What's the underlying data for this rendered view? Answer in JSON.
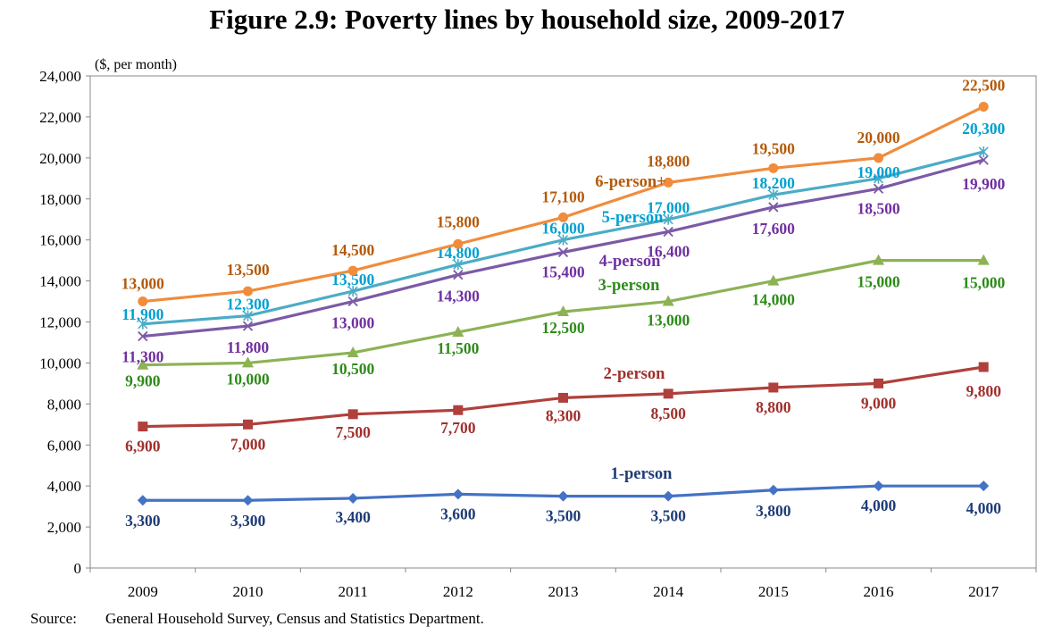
{
  "title": "Figure 2.9: Poverty lines by household size, 2009-2017",
  "source_label": "Source:",
  "source_text": "General Household Survey, Census and Statistics Department.",
  "chart_data": {
    "type": "line",
    "title": "Figure 2.9: Poverty lines by household size, 2009-2017",
    "ylabel": "($, per month)",
    "xlabel": "",
    "categories": [
      "2009",
      "2010",
      "2011",
      "2012",
      "2013",
      "2014",
      "2015",
      "2016",
      "2017"
    ],
    "ylim": [
      0,
      24000
    ],
    "yticks": [
      0,
      2000,
      4000,
      6000,
      8000,
      10000,
      12000,
      14000,
      16000,
      18000,
      20000,
      22000,
      24000
    ],
    "ytick_labels": [
      "0",
      "2,000",
      "4,000",
      "6,000",
      "8,000",
      "10,000",
      "12,000",
      "14,000",
      "16,000",
      "18,000",
      "20,000",
      "22,000",
      "24,000"
    ],
    "grid": false,
    "series": [
      {
        "name": "1-person",
        "color": "#4472C4",
        "label_color": "#1F3C78",
        "marker": "diamond",
        "values": [
          3300,
          3300,
          3400,
          3600,
          3500,
          3500,
          3800,
          4000,
          4000
        ],
        "labels": [
          "3,300",
          "3,300",
          "3,400",
          "3,600",
          "3,500",
          "3,500",
          "3,800",
          "4,000",
          "4,000"
        ]
      },
      {
        "name": "2-person",
        "color": "#B0403C",
        "label_color": "#A0302C",
        "marker": "square",
        "values": [
          6900,
          7000,
          7500,
          7700,
          8300,
          8500,
          8800,
          9000,
          9800
        ],
        "labels": [
          "6,900",
          "7,000",
          "7,500",
          "7,700",
          "8,300",
          "8,500",
          "8,800",
          "9,000",
          "9,800"
        ]
      },
      {
        "name": "3-person",
        "color": "#8DB255",
        "label_color": "#2E8B1A",
        "marker": "triangle",
        "values": [
          9900,
          10000,
          10500,
          11500,
          12500,
          13000,
          14000,
          15000,
          15000
        ],
        "labels": [
          "9,900",
          "10,000",
          "10,500",
          "11,500",
          "12,500",
          "13,000",
          "14,000",
          "15,000",
          "15,000"
        ]
      },
      {
        "name": "4-person",
        "color": "#7B5AA6",
        "label_color": "#7030A0",
        "marker": "x",
        "values": [
          11300,
          11800,
          13000,
          14300,
          15400,
          16400,
          17600,
          18500,
          19900
        ],
        "labels": [
          "11,300",
          "11,800",
          "13,000",
          "14,300",
          "15,400",
          "16,400",
          "17,600",
          "18,500",
          "19,900"
        ]
      },
      {
        "name": "5-person",
        "color": "#4BACC6",
        "label_color": "#00A0D0",
        "marker": "star",
        "values": [
          11900,
          12300,
          13500,
          14800,
          16000,
          17000,
          18200,
          19000,
          20300
        ],
        "labels": [
          "11,900",
          "12,300",
          "13,500",
          "14,800",
          "16,000",
          "17,000",
          "18,200",
          "19,000",
          "20,300"
        ]
      },
      {
        "name": "6-person+",
        "color": "#F08C3C",
        "label_color": "#B45A0A",
        "marker": "circle",
        "values": [
          13000,
          13500,
          14500,
          15800,
          17100,
          18800,
          19500,
          20000,
          22500
        ],
        "labels": [
          "13,000",
          "13,500",
          "14,500",
          "15,800",
          "17,100",
          "18,800",
          "19,500",
          "20,000",
          "22,500"
        ]
      }
    ]
  }
}
